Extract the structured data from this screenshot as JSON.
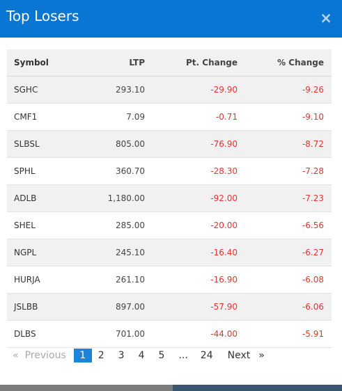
{
  "modal": {
    "title": "Top Losers",
    "close_icon": "×"
  },
  "table": {
    "headers": {
      "symbol": "Symbol",
      "ltp": "LTP",
      "pt_change": "Pt. Change",
      "pct_change": "% Change"
    },
    "rows": [
      {
        "symbol": "SGHC",
        "ltp": "293.10",
        "pt_change": "-29.90",
        "pct_change": "-9.26"
      },
      {
        "symbol": "CMF1",
        "ltp": "7.09",
        "pt_change": "-0.71",
        "pct_change": "-9.10"
      },
      {
        "symbol": "SLBSL",
        "ltp": "805.00",
        "pt_change": "-76.90",
        "pct_change": "-8.72"
      },
      {
        "symbol": "SPHL",
        "ltp": "360.70",
        "pt_change": "-28.30",
        "pct_change": "-7.28"
      },
      {
        "symbol": "ADLB",
        "ltp": "1,180.00",
        "pt_change": "-92.00",
        "pct_change": "-7.23"
      },
      {
        "symbol": "SHEL",
        "ltp": "285.00",
        "pt_change": "-20.00",
        "pct_change": "-6.56"
      },
      {
        "symbol": "NGPL",
        "ltp": "245.10",
        "pt_change": "-16.40",
        "pct_change": "-6.27"
      },
      {
        "symbol": "HURJA",
        "ltp": "261.10",
        "pt_change": "-16.90",
        "pct_change": "-6.08"
      },
      {
        "symbol": "JSLBB",
        "ltp": "897.00",
        "pt_change": "-57.90",
        "pct_change": "-6.06"
      },
      {
        "symbol": "DLBS",
        "ltp": "701.00",
        "pt_change": "-44.00",
        "pct_change": "-5.91"
      }
    ]
  },
  "pagination": {
    "prev_arrow": "«",
    "prev_label": "Previous",
    "pages": [
      "1",
      "2",
      "3",
      "4",
      "5"
    ],
    "ellipsis": "...",
    "last_page": "24",
    "next_label": "Next",
    "next_arrow": "»",
    "current": "1"
  },
  "colors": {
    "header_bg": "#0a76d4",
    "negative": "#e8312f",
    "active_page": "#1f83d8"
  }
}
